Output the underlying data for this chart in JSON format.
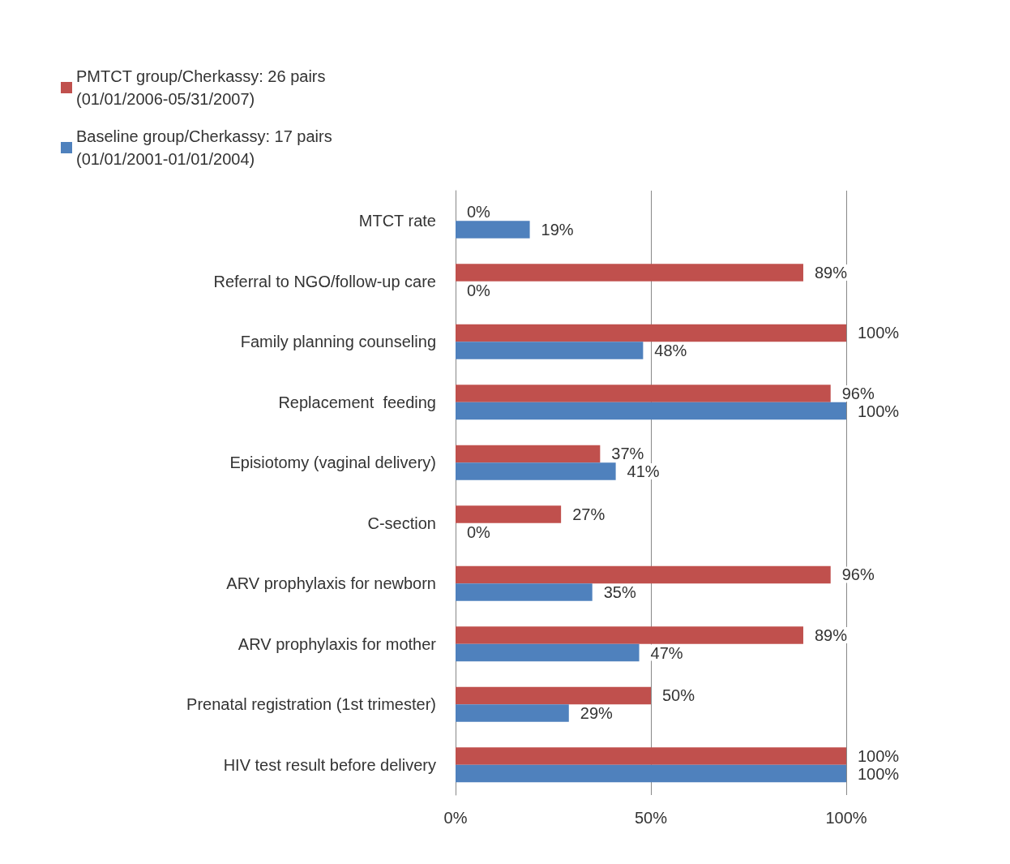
{
  "chart_data": {
    "type": "bar",
    "orientation": "horizontal",
    "categories": [
      "MTCT rate",
      "Referral to NGO/follow-up care",
      "Family planning counseling",
      "Replacement  feeding",
      "Episiotomy (vaginal delivery)",
      "C-section",
      "ARV prophylaxis for newborn",
      "ARV prophylaxis for mother",
      "Prenatal registration (1st trimester)",
      "HIV test result before delivery"
    ],
    "series": [
      {
        "name": "PMTCT group/Cherkassy: 26 pairs (01/01/2006-05/31/2007)",
        "color": "#c0504d",
        "values": [
          0,
          89,
          100,
          96,
          37,
          27,
          96,
          89,
          50,
          100
        ],
        "value_labels": [
          "0%",
          "89%",
          "100%",
          "96%",
          "37%",
          "27%",
          "96%",
          "89%",
          "50%",
          "100%"
        ]
      },
      {
        "name": "Baseline group/Cherkassy: 17 pairs (01/01/2001-01/01/2004)",
        "color": "#4f81bd",
        "values": [
          19,
          0,
          48,
          100,
          41,
          0,
          35,
          47,
          29,
          100
        ],
        "value_labels": [
          "19%",
          "0%",
          "48%",
          "100%",
          "41%",
          "0%",
          "35%",
          "47%",
          "29%",
          "100%"
        ]
      }
    ],
    "xlim": [
      0,
      100
    ],
    "xticks": [
      {
        "value": 0,
        "label": "0%"
      },
      {
        "value": 50,
        "label": "50%"
      },
      {
        "value": 100,
        "label": "100%"
      }
    ],
    "grid": "x",
    "legend": "top left"
  }
}
